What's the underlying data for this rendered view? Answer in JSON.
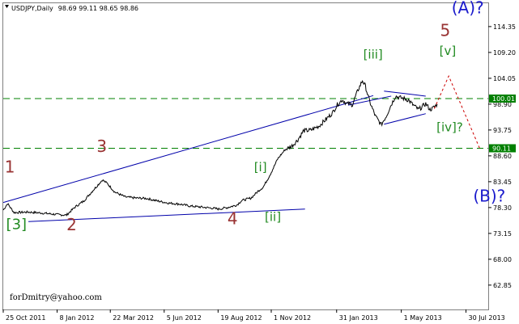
{
  "header": {
    "symbol": "USDJPY,Daily",
    "ohlc": "98.69 99.11 98.65 98.86"
  },
  "credit": "forDmitry@yahoo.com",
  "colors": {
    "price": "#000000",
    "trendline": "#0000aa",
    "level": "#008000",
    "red_wave": "#993333",
    "green_wave": "#228b22",
    "blue_wave": "#1a1acc",
    "projection": "#cc0000"
  },
  "chart_data": {
    "type": "line",
    "ylim": [
      58.0,
      119.0
    ],
    "y_ticks": [
      "114.35",
      "109.20",
      "104.05",
      "98.90",
      "93.75",
      "88.60",
      "83.45",
      "78.30",
      "73.15",
      "68.00",
      "62.85"
    ],
    "x_labels": [
      {
        "label": "25 Oct 2011",
        "d": 0
      },
      {
        "label": "8 Jan 2012",
        "d": 75
      },
      {
        "label": "22 Mar 2012",
        "d": 149
      },
      {
        "label": "5 Jun 2012",
        "d": 224
      },
      {
        "label": "19 Aug 2012",
        "d": 299
      },
      {
        "label": "1 Nov 2012",
        "d": 373
      },
      {
        "label": "31 Jan 2013",
        "d": 464
      },
      {
        "label": "1 May 2013",
        "d": 554
      },
      {
        "label": "30 Jul 2013",
        "d": 644
      }
    ],
    "price_key": [
      [
        0,
        77.8
      ],
      [
        6,
        79.1
      ],
      [
        15,
        77.3
      ],
      [
        35,
        77.4
      ],
      [
        55,
        77.2
      ],
      [
        75,
        76.9
      ],
      [
        88,
        76.8
      ],
      [
        100,
        78.4
      ],
      [
        112,
        79.6
      ],
      [
        128,
        82.2
      ],
      [
        138,
        83.8
      ],
      [
        145,
        83.1
      ],
      [
        155,
        81.4
      ],
      [
        170,
        80.4
      ],
      [
        185,
        80.2
      ],
      [
        200,
        80.1
      ],
      [
        215,
        79.6
      ],
      [
        230,
        79.2
      ],
      [
        245,
        79.0
      ],
      [
        260,
        78.6
      ],
      [
        275,
        78.4
      ],
      [
        290,
        78.2
      ],
      [
        300,
        78.0
      ],
      [
        312,
        78.3
      ],
      [
        325,
        78.8
      ],
      [
        332,
        79.7
      ],
      [
        345,
        80.2
      ],
      [
        355,
        81.6
      ],
      [
        362,
        82.4
      ],
      [
        372,
        85.0
      ],
      [
        382,
        88.0
      ],
      [
        392,
        89.8
      ],
      [
        402,
        90.6
      ],
      [
        410,
        91.8
      ],
      [
        418,
        93.6
      ],
      [
        428,
        93.7
      ],
      [
        440,
        94.6
      ],
      [
        450,
        96.0
      ],
      [
        458,
        97.1
      ],
      [
        465,
        98.8
      ],
      [
        472,
        99.8
      ],
      [
        478,
        99.0
      ],
      [
        486,
        98.8
      ],
      [
        494,
        101.8
      ],
      [
        500,
        103.6
      ],
      [
        504,
        102.5
      ],
      [
        510,
        99.4
      ],
      [
        518,
        96.5
      ],
      [
        526,
        94.8
      ],
      [
        533,
        96.5
      ],
      [
        540,
        98.8
      ],
      [
        546,
        100.5
      ],
      [
        552,
        100.2
      ],
      [
        558,
        100.0
      ],
      [
        564,
        99.7
      ],
      [
        570,
        98.8
      ],
      [
        578,
        97.8
      ],
      [
        584,
        98.5
      ],
      [
        588,
        99.0
      ],
      [
        594,
        97.8
      ],
      [
        598,
        98.1
      ],
      [
        604,
        98.9
      ]
    ],
    "horizontal_levels": [
      {
        "value": 100.01,
        "label": "100.01"
      },
      {
        "value": 90.11,
        "label": "90.11"
      }
    ],
    "trendlines": [
      {
        "from": [
          0,
          79.3
        ],
        "to": [
          515,
          100.6
        ]
      },
      {
        "from": [
          35,
          75.5
        ],
        "to": [
          420,
          78.0
        ]
      },
      {
        "from": [
          480,
          98.7
        ],
        "to": [
          540,
          100.5
        ]
      },
      {
        "from": [
          530,
          101.5
        ],
        "to": [
          588,
          100.5
        ]
      },
      {
        "from": [
          530,
          94.9
        ],
        "to": [
          588,
          97.0
        ]
      }
    ],
    "projection": [
      [
        600,
        98.0
      ],
      [
        620,
        104.5
      ],
      [
        663,
        90.11
      ]
    ],
    "wave_labels": [
      {
        "text": "1",
        "d": 2,
        "y": 85.3,
        "group": "red_wave",
        "size": 20
      },
      {
        "text": "[3]",
        "d": 4,
        "y": 74.0,
        "group": "green_wave",
        "size": 18
      },
      {
        "text": "2",
        "d": 88,
        "y": 73.8,
        "group": "red_wave",
        "size": 20
      },
      {
        "text": "3",
        "d": 130,
        "y": 89.4,
        "group": "red_wave",
        "size": 20
      },
      {
        "text": "4",
        "d": 312,
        "y": 75.0,
        "group": "red_wave",
        "size": 20
      },
      {
        "text": "[i]",
        "d": 349,
        "y": 85.5,
        "group": "green_wave",
        "size": 15
      },
      {
        "text": "[ii]",
        "d": 364,
        "y": 75.6,
        "group": "green_wave",
        "size": 15
      },
      {
        "text": "[iii]",
        "d": 501,
        "y": 108.0,
        "group": "green_wave",
        "size": 15
      },
      {
        "text": "[iv]?",
        "d": 603,
        "y": 93.5,
        "group": "green_wave",
        "size": 15
      },
      {
        "text": "[v]",
        "d": 607,
        "y": 108.7,
        "group": "green_wave",
        "size": 15
      },
      {
        "text": "5",
        "d": 608,
        "y": 112.5,
        "group": "red_wave",
        "size": 20
      },
      {
        "text": "(A)?",
        "d": 624,
        "y": 117.0,
        "group": "blue_wave",
        "size": 20
      },
      {
        "text": "(B)?",
        "d": 654,
        "y": 79.5,
        "group": "blue_wave",
        "size": 20
      }
    ]
  }
}
